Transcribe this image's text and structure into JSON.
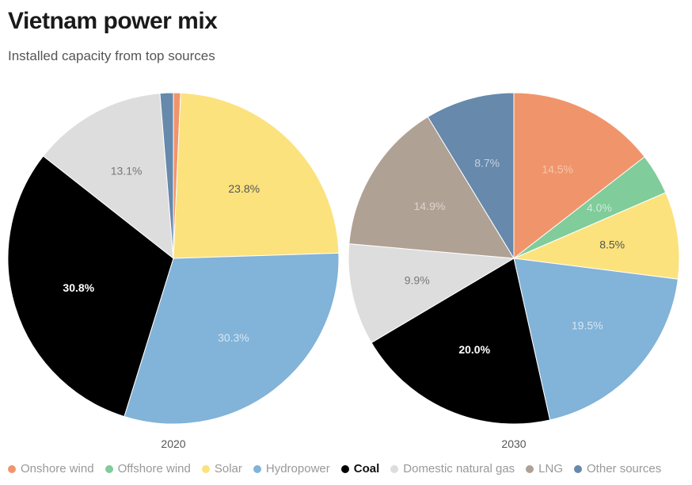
{
  "title": "Vietnam power mix",
  "subtitle": "Installed capacity from top sources",
  "chart_data": [
    {
      "type": "pie",
      "label": "2020",
      "slices": [
        {
          "name": "Onshore wind",
          "value": 0.7,
          "label": "",
          "color": "#f0956b"
        },
        {
          "name": "Offshore wind",
          "value": 0.0,
          "label": "",
          "color": "#80cc9a"
        },
        {
          "name": "Solar",
          "value": 23.8,
          "label": "23.8%",
          "color": "#fbe27d",
          "label_color": "#555555"
        },
        {
          "name": "Hydropower",
          "value": 30.3,
          "label": "30.3%",
          "color": "#82b3d8",
          "label_color": "#d6e7f4"
        },
        {
          "name": "Coal",
          "value": 30.8,
          "label": "30.8%",
          "color": "#000000",
          "label_color": "#ffffff",
          "bold": true
        },
        {
          "name": "Domestic natural gas",
          "value": 13.1,
          "label": "13.1%",
          "color": "#dddddd",
          "label_color": "#777777"
        },
        {
          "name": "LNG",
          "value": 0.0,
          "label": "",
          "color": "#b0a195"
        },
        {
          "name": "Other sources",
          "value": 1.3,
          "label": "",
          "color": "#6689ac"
        }
      ]
    },
    {
      "type": "pie",
      "label": "2030",
      "slices": [
        {
          "name": "Onshore wind",
          "value": 14.5,
          "label": "14.5%",
          "color": "#f0956b",
          "label_color": "#f7c6ad"
        },
        {
          "name": "Offshore wind",
          "value": 4.0,
          "label": "4.0%",
          "color": "#80cc9a",
          "label_color": "#cdebd7"
        },
        {
          "name": "Solar",
          "value": 8.5,
          "label": "8.5%",
          "color": "#fbe27d",
          "label_color": "#555555"
        },
        {
          "name": "Hydropower",
          "value": 19.5,
          "label": "19.5%",
          "color": "#82b3d8",
          "label_color": "#d6e7f4"
        },
        {
          "name": "Coal",
          "value": 20.0,
          "label": "20.0%",
          "color": "#000000",
          "label_color": "#ffffff",
          "bold": true
        },
        {
          "name": "Domestic natural gas",
          "value": 9.9,
          "label": "9.9%",
          "color": "#dddddd",
          "label_color": "#777777"
        },
        {
          "name": "LNG",
          "value": 14.9,
          "label": "14.9%",
          "color": "#b0a195",
          "label_color": "#ddd4cd"
        },
        {
          "name": "Other sources",
          "value": 8.7,
          "label": "8.7%",
          "color": "#6689ac",
          "label_color": "#c2d1e0"
        }
      ]
    }
  ],
  "legend": [
    {
      "label": "Onshore wind",
      "color": "#f0956b"
    },
    {
      "label": "Offshore wind",
      "color": "#80cc9a"
    },
    {
      "label": "Solar",
      "color": "#fbe27d"
    },
    {
      "label": "Hydropower",
      "color": "#82b3d8"
    },
    {
      "label": "Coal",
      "color": "#000000",
      "bold": true
    },
    {
      "label": "Domestic natural gas",
      "color": "#dddddd"
    },
    {
      "label": "LNG",
      "color": "#b0a195"
    },
    {
      "label": "Other sources",
      "color": "#6689ac"
    }
  ]
}
